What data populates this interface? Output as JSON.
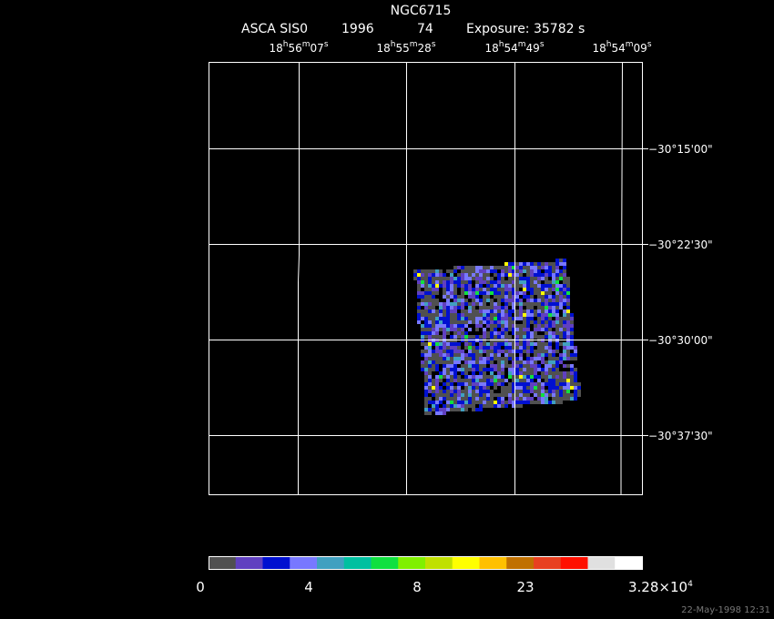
{
  "title": "NGC6715",
  "header": {
    "instrument": "ASCA SIS0",
    "year": "1996",
    "number": "74",
    "exposure": "Exposure: 35782 s"
  },
  "ra_labels": [
    [
      "18",
      "h",
      "56",
      "m",
      "07",
      "s"
    ],
    [
      "18",
      "h",
      "55",
      "m",
      "28",
      "s"
    ],
    [
      "18",
      "h",
      "54",
      "m",
      "49",
      "s"
    ],
    [
      "18",
      "h",
      "54",
      "m",
      "09",
      "s"
    ]
  ],
  "dec_labels": [
    "−30°15'00\"",
    "−30°22'30\"",
    "−30°30'00\"",
    "−30°37'30\""
  ],
  "colorbar": {
    "colors": [
      "#505050",
      "#6040c0",
      "#0010d0",
      "#7878ff",
      "#40a0c0",
      "#00c0a0",
      "#10e040",
      "#80f000",
      "#c0e000",
      "#ffff00",
      "#ffc000",
      "#c07000",
      "#e84020",
      "#ff1000",
      "#e0e0e0",
      "#ffffff"
    ],
    "labels": [
      [
        "0"
      ],
      [
        "4"
      ],
      [
        "8"
      ],
      [
        "23"
      ],
      [
        "3.28×10",
        "4"
      ]
    ]
  },
  "timestamp": "22-May-1998 12:31"
}
